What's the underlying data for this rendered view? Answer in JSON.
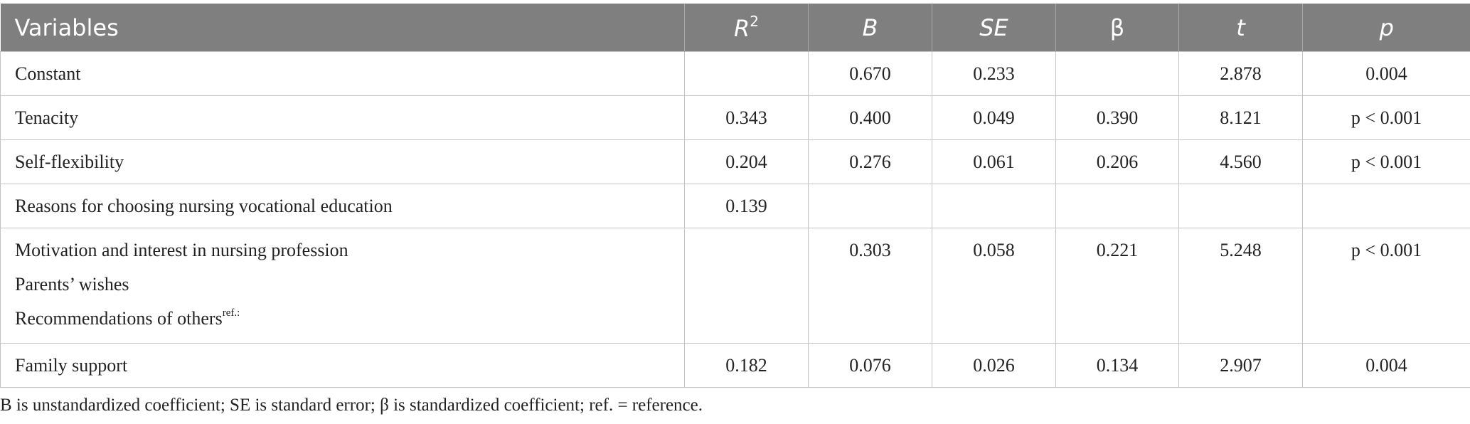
{
  "table": {
    "header": [
      "Variables",
      {
        "text": "R",
        "sup": "2"
      },
      "B",
      "SE",
      "β",
      "t",
      "p"
    ],
    "rows": [
      {
        "variable": [
          "Constant"
        ],
        "values": [
          null,
          "0.670",
          "0.233",
          null,
          "2.878",
          "0.004"
        ]
      },
      {
        "variable": [
          "Tenacity"
        ],
        "values": [
          "0.343",
          "0.400",
          "0.049",
          "0.390",
          "8.121",
          "p < 0.001"
        ]
      },
      {
        "variable": [
          "Self-flexibility"
        ],
        "values": [
          "0.204",
          "0.276",
          "0.061",
          "0.206",
          "4.560",
          "p < 0.001"
        ]
      },
      {
        "variable": [
          "Reasons for choosing nursing vocational education"
        ],
        "values": [
          "0.139",
          null,
          null,
          null,
          null,
          null
        ]
      },
      {
        "variable": [
          "Motivation and interest in nursing profession",
          "Parents’ wishes",
          {
            "text": "Recommendations of others",
            "sup": "ref.:"
          }
        ],
        "values": [
          null,
          "0.303",
          "0.058",
          "0.221",
          "5.248",
          "p < 0.001"
        ]
      },
      {
        "variable": [
          "Family support"
        ],
        "values": [
          "0.182",
          "0.076",
          "0.026",
          "0.134",
          "2.907",
          "0.004"
        ]
      }
    ],
    "note": "B is unstandardized coefficient; SE is standard error; β is standardized coefficient; ref. = reference."
  }
}
